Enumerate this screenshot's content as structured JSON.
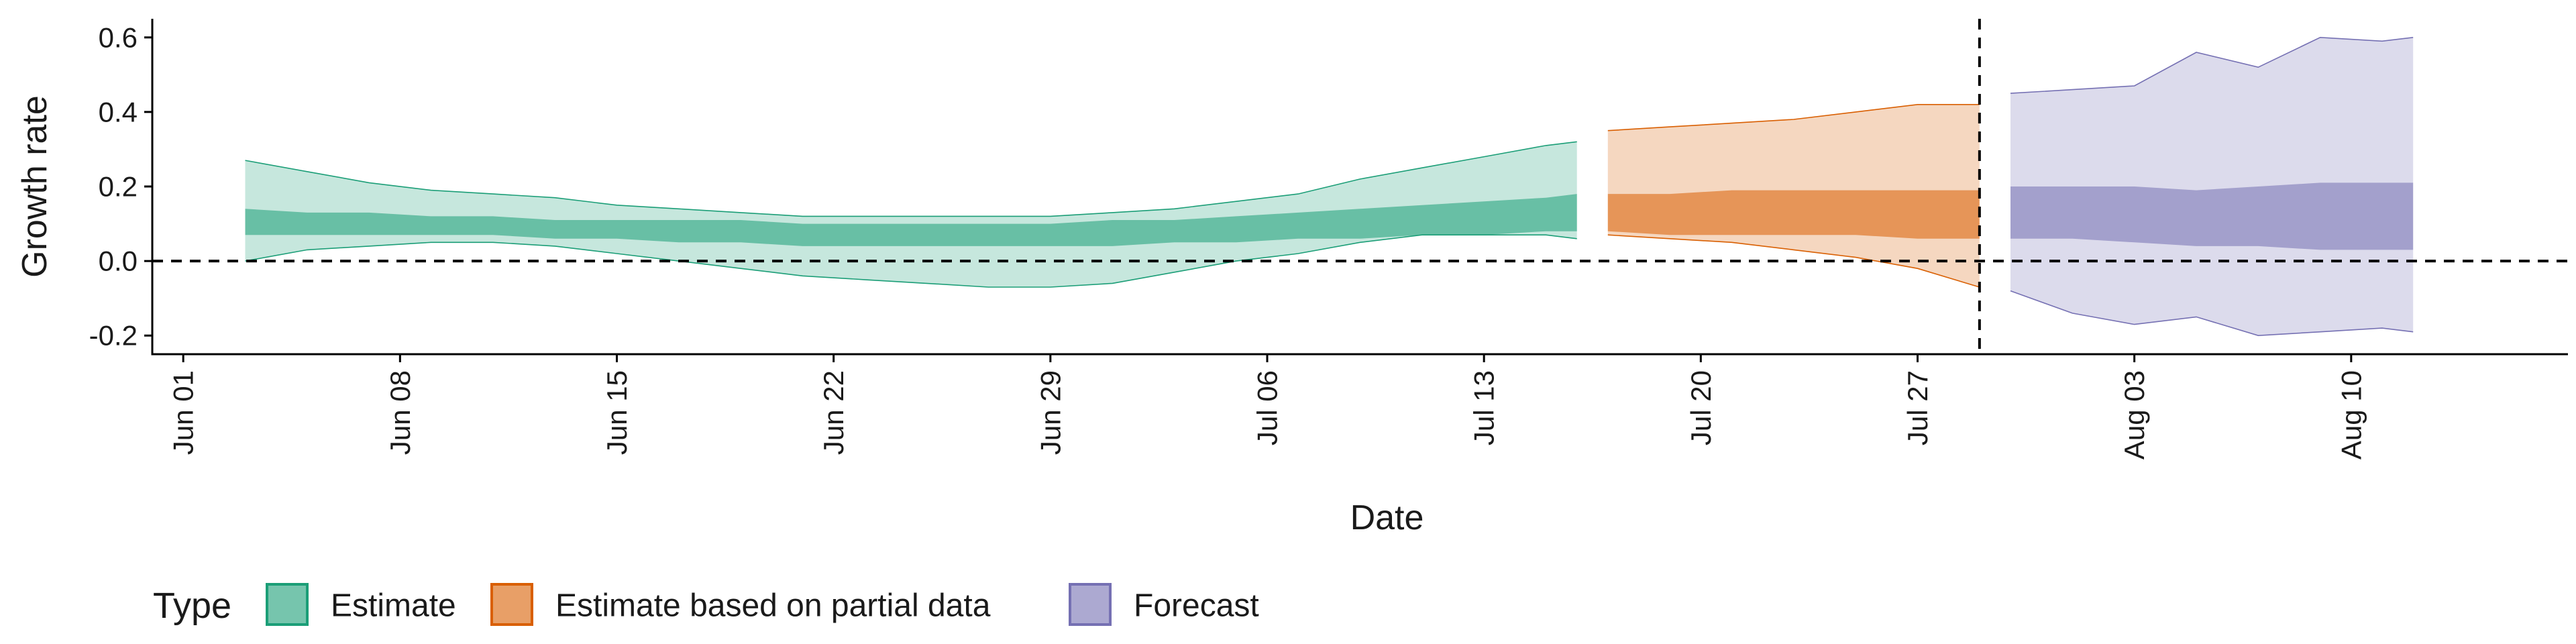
{
  "chart_data": {
    "type": "area",
    "xlabel": "Date",
    "ylabel": "Growth rate",
    "ylim": [
      -0.25,
      0.65
    ],
    "xlim": [
      "2021-05-31",
      "2021-08-17"
    ],
    "y_ticks": [
      -0.2,
      0.0,
      0.2,
      0.4,
      0.6
    ],
    "y_tick_labels": [
      "-0.2",
      "0.0",
      "0.2",
      "0.4",
      "0.6"
    ],
    "x_ticks": [
      "2021-06-01",
      "2021-06-08",
      "2021-06-15",
      "2021-06-22",
      "2021-06-29",
      "2021-07-06",
      "2021-07-13",
      "2021-07-20",
      "2021-07-27",
      "2021-08-03",
      "2021-08-10"
    ],
    "x_tick_labels": [
      "Jun 01",
      "Jun 08",
      "Jun 15",
      "Jun 22",
      "Jun 29",
      "Jul 06",
      "Jul 13",
      "Jul 20",
      "Jul 27",
      "Aug 03",
      "Aug 10"
    ],
    "reference_lines": {
      "horizontal_y": 0,
      "vertical_date": "2021-07-29",
      "style": "dashed"
    },
    "legend": {
      "title": "Type",
      "position": "bottom-left"
    },
    "series": [
      {
        "name": "Estimate",
        "color": "#1b9e77",
        "dates": [
          "2021-06-03",
          "2021-06-05",
          "2021-06-07",
          "2021-06-09",
          "2021-06-11",
          "2021-06-13",
          "2021-06-15",
          "2021-06-17",
          "2021-06-19",
          "2021-06-21",
          "2021-06-23",
          "2021-06-25",
          "2021-06-27",
          "2021-06-29",
          "2021-07-01",
          "2021-07-03",
          "2021-07-05",
          "2021-07-07",
          "2021-07-09",
          "2021-07-11",
          "2021-07-13",
          "2021-07-15",
          "2021-07-16"
        ],
        "lower_90": [
          0.0,
          0.03,
          0.04,
          0.05,
          0.05,
          0.04,
          0.02,
          0.0,
          -0.02,
          -0.04,
          -0.05,
          -0.06,
          -0.07,
          -0.07,
          -0.06,
          -0.03,
          0.0,
          0.02,
          0.05,
          0.07,
          0.07,
          0.07,
          0.06
        ],
        "upper_90": [
          0.27,
          0.24,
          0.21,
          0.19,
          0.18,
          0.17,
          0.15,
          0.14,
          0.13,
          0.12,
          0.12,
          0.12,
          0.12,
          0.12,
          0.13,
          0.14,
          0.16,
          0.18,
          0.22,
          0.25,
          0.28,
          0.31,
          0.32
        ],
        "lower_50": [
          0.07,
          0.07,
          0.07,
          0.07,
          0.07,
          0.06,
          0.06,
          0.05,
          0.05,
          0.04,
          0.04,
          0.04,
          0.04,
          0.04,
          0.04,
          0.05,
          0.05,
          0.06,
          0.06,
          0.07,
          0.07,
          0.08,
          0.08
        ],
        "upper_50": [
          0.14,
          0.13,
          0.13,
          0.12,
          0.12,
          0.11,
          0.11,
          0.11,
          0.11,
          0.1,
          0.1,
          0.1,
          0.1,
          0.1,
          0.11,
          0.11,
          0.12,
          0.13,
          0.14,
          0.15,
          0.16,
          0.17,
          0.18
        ]
      },
      {
        "name": "Estimate based on partial data",
        "color": "#d95f02",
        "dates": [
          "2021-07-17",
          "2021-07-19",
          "2021-07-21",
          "2021-07-23",
          "2021-07-25",
          "2021-07-27",
          "2021-07-29"
        ],
        "lower_90": [
          0.07,
          0.06,
          0.05,
          0.03,
          0.01,
          -0.02,
          -0.07
        ],
        "upper_90": [
          0.35,
          0.36,
          0.37,
          0.38,
          0.4,
          0.42,
          0.42
        ],
        "lower_50": [
          0.08,
          0.07,
          0.07,
          0.07,
          0.07,
          0.06,
          0.06
        ],
        "upper_50": [
          0.18,
          0.18,
          0.19,
          0.19,
          0.19,
          0.19,
          0.19
        ]
      },
      {
        "name": "Forecast",
        "color": "#7570b3",
        "dates": [
          "2021-07-30",
          "2021-08-01",
          "2021-08-03",
          "2021-08-05",
          "2021-08-07",
          "2021-08-09",
          "2021-08-11",
          "2021-08-12"
        ],
        "lower_90": [
          -0.08,
          -0.14,
          -0.17,
          -0.15,
          -0.2,
          -0.19,
          -0.18,
          -0.19
        ],
        "upper_90": [
          0.45,
          0.46,
          0.47,
          0.56,
          0.52,
          0.6,
          0.59,
          0.6
        ],
        "lower_50": [
          0.06,
          0.06,
          0.05,
          0.04,
          0.04,
          0.03,
          0.03,
          0.03
        ],
        "upper_50": [
          0.2,
          0.2,
          0.2,
          0.19,
          0.2,
          0.21,
          0.21,
          0.21
        ]
      }
    ]
  }
}
